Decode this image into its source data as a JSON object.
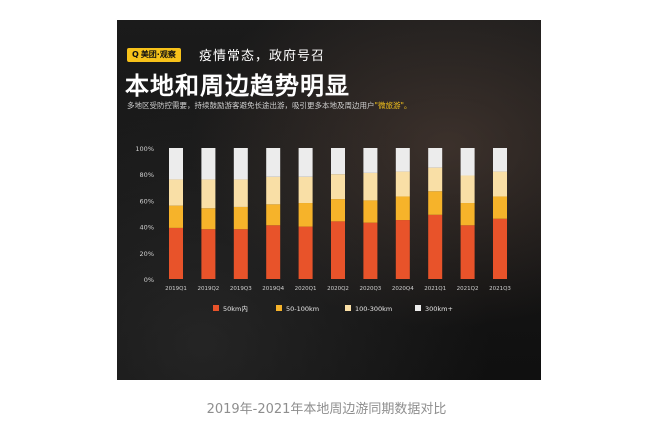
{
  "header": {
    "brand_badge": "美团·观察",
    "subtitle": "疫情常态，政府号召",
    "title": "本地和周边趋势明显",
    "caption_main": "多地区受防控需要，持续鼓励游客避免长途出游，吸引更多本地及周边用户",
    "caption_highlight": "\"微旅游\"。"
  },
  "footer": {
    "caption": "2019年-2021年本地周边游同期数据对比"
  },
  "colors": {
    "s50": "#e8532a",
    "s100": "#f6b32a",
    "s300": "#f9dfa6",
    "s300plus": "#ececec",
    "badge": "#f7c21a"
  },
  "chart_data": {
    "type": "bar",
    "stacked": true,
    "categories": [
      "2019Q1",
      "2019Q2",
      "2019Q3",
      "2019Q4",
      "2020Q1",
      "2020Q2",
      "2020Q3",
      "2020Q4",
      "2021Q1",
      "2021Q2",
      "2021Q3"
    ],
    "series": [
      {
        "name": "50km内",
        "values": [
          39,
          38,
          38,
          41,
          40,
          44,
          43,
          45,
          49,
          41,
          46
        ]
      },
      {
        "name": "50-100km",
        "values": [
          17,
          16,
          17,
          16,
          18,
          17,
          17,
          18,
          18,
          17,
          17
        ]
      },
      {
        "name": "100-300km",
        "values": [
          20,
          22,
          21,
          21,
          20,
          19,
          21,
          19,
          18,
          21,
          19
        ]
      },
      {
        "name": "300km+",
        "values": [
          24,
          24,
          24,
          22,
          22,
          20,
          19,
          18,
          15,
          21,
          18
        ]
      }
    ],
    "y_ticks": [
      "0%",
      "20%",
      "40%",
      "60%",
      "80%",
      "100%"
    ],
    "ylim": [
      0,
      100
    ],
    "grid": false,
    "legend_position": "bottom"
  }
}
